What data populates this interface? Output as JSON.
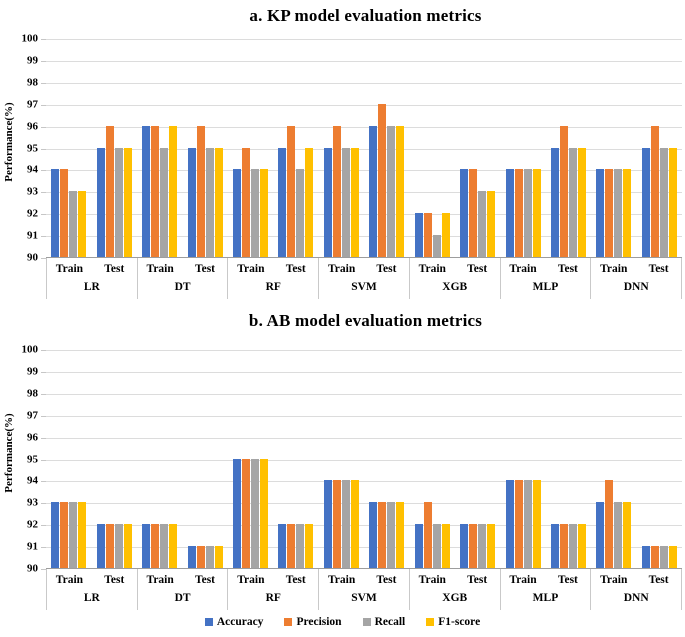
{
  "legend": {
    "items": [
      {
        "label": "Accuracy",
        "color": "#4472C4"
      },
      {
        "label": "Precision",
        "color": "#ED7D31"
      },
      {
        "label": "Recall",
        "color": "#A5A5A5"
      },
      {
        "label": "F1-score",
        "color": "#FFC000"
      }
    ]
  },
  "chart_data": [
    {
      "type": "bar",
      "title": "a. KP model evaluation metrics",
      "ylabel": "Performance(%)",
      "ylim": [
        90,
        100
      ],
      "yticks": [
        90,
        91,
        92,
        93,
        94,
        95,
        96,
        97,
        98,
        99,
        100
      ],
      "grid": true,
      "legend_position": "bottom",
      "groups": [
        "LR",
        "DT",
        "RF",
        "SVM",
        "XGB",
        "MLP",
        "DNN"
      ],
      "subgroups": [
        "Train",
        "Test"
      ],
      "category_order_note": "values are flat arrays ordered LR-Train, LR-Test, DT-Train, DT-Test, RF-Train, RF-Test, SVM-Train, SVM-Test, XGB-Train, XGB-Test, MLP-Train, MLP-Test, DNN-Train, DNN-Test",
      "series": [
        {
          "name": "Accuracy",
          "color": "#4472C4",
          "values": [
            94,
            95,
            96,
            95,
            94,
            95,
            95,
            96,
            92,
            94,
            94,
            95,
            94,
            95
          ]
        },
        {
          "name": "Precision",
          "color": "#ED7D31",
          "values": [
            94,
            96,
            96,
            96,
            95,
            96,
            96,
            97,
            92,
            94,
            94,
            96,
            94,
            96
          ]
        },
        {
          "name": "Recall",
          "color": "#A5A5A5",
          "values": [
            93,
            95,
            95,
            95,
            94,
            94,
            95,
            96,
            91,
            93,
            94,
            95,
            94,
            95
          ]
        },
        {
          "name": "F1-score",
          "color": "#FFC000",
          "values": [
            93,
            95,
            96,
            95,
            94,
            95,
            95,
            96,
            92,
            93,
            94,
            95,
            94,
            95
          ]
        }
      ]
    },
    {
      "type": "bar",
      "title": "b. AB model evaluation metrics",
      "ylabel": "Performance(%)",
      "ylim": [
        90,
        100
      ],
      "yticks": [
        90,
        91,
        92,
        93,
        94,
        95,
        96,
        97,
        98,
        99,
        100
      ],
      "grid": true,
      "legend_position": "bottom",
      "groups": [
        "LR",
        "DT",
        "RF",
        "SVM",
        "XGB",
        "MLP",
        "DNN"
      ],
      "subgroups": [
        "Train",
        "Test"
      ],
      "category_order_note": "values are flat arrays ordered LR-Train, LR-Test, DT-Train, DT-Test, RF-Train, RF-Test, SVM-Train, SVM-Test, XGB-Train, XGB-Test, MLP-Train, MLP-Test, DNN-Train, DNN-Test",
      "series": [
        {
          "name": "Accuracy",
          "color": "#4472C4",
          "values": [
            93,
            92,
            92,
            91,
            95,
            92,
            94,
            93,
            92,
            92,
            94,
            92,
            93,
            91
          ]
        },
        {
          "name": "Precision",
          "color": "#ED7D31",
          "values": [
            93,
            92,
            92,
            91,
            95,
            92,
            94,
            93,
            93,
            92,
            94,
            92,
            94,
            91
          ]
        },
        {
          "name": "Recall",
          "color": "#A5A5A5",
          "values": [
            93,
            92,
            92,
            91,
            95,
            92,
            94,
            93,
            92,
            92,
            94,
            92,
            93,
            91
          ]
        },
        {
          "name": "F1-score",
          "color": "#FFC000",
          "values": [
            93,
            92,
            92,
            91,
            95,
            92,
            94,
            93,
            92,
            92,
            94,
            92,
            93,
            91
          ]
        }
      ]
    }
  ]
}
